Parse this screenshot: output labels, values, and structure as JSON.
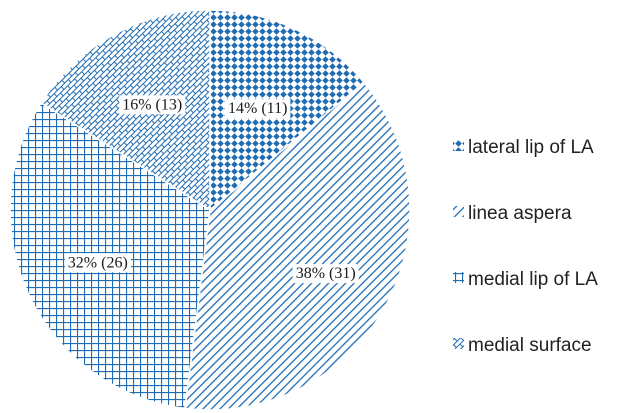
{
  "chart_data": {
    "type": "pie",
    "title": "",
    "slices": [
      {
        "name": "lateral lip of LA",
        "percent": 14,
        "count": 11,
        "label": "14% (11)",
        "pattern": "diamond-icon"
      },
      {
        "name": "linea aspera",
        "percent": 38,
        "count": 31,
        "label": "38% (31)",
        "pattern": "diagonal-hatch-icon"
      },
      {
        "name": "medial lip of LA",
        "percent": 32,
        "count": 26,
        "label": "32% (26)",
        "pattern": "grid-icon"
      },
      {
        "name": "medial surface",
        "percent": 16,
        "count": 13,
        "label": "16% (13)",
        "pattern": "brick-icon"
      }
    ],
    "legend_position": "right",
    "colors": {
      "accent": "#1f6cb3"
    }
  }
}
